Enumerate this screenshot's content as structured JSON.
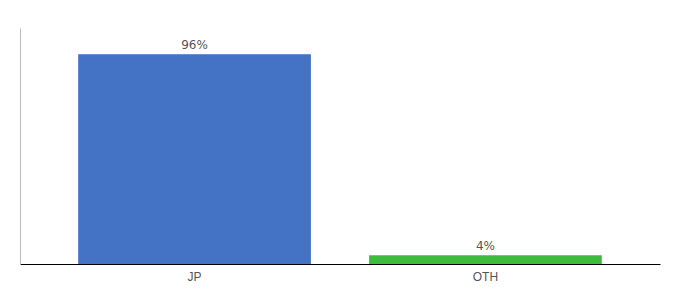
{
  "chart_data": {
    "type": "bar",
    "categories": [
      "JP",
      "OTH"
    ],
    "values": [
      96,
      4
    ],
    "value_labels": [
      "96%",
      "4%"
    ],
    "colors": [
      "#4472c4",
      "#3dbb3d"
    ],
    "data_labels": true,
    "ylim": [
      0,
      108
    ],
    "tick_labels": "x",
    "grid": false
  }
}
